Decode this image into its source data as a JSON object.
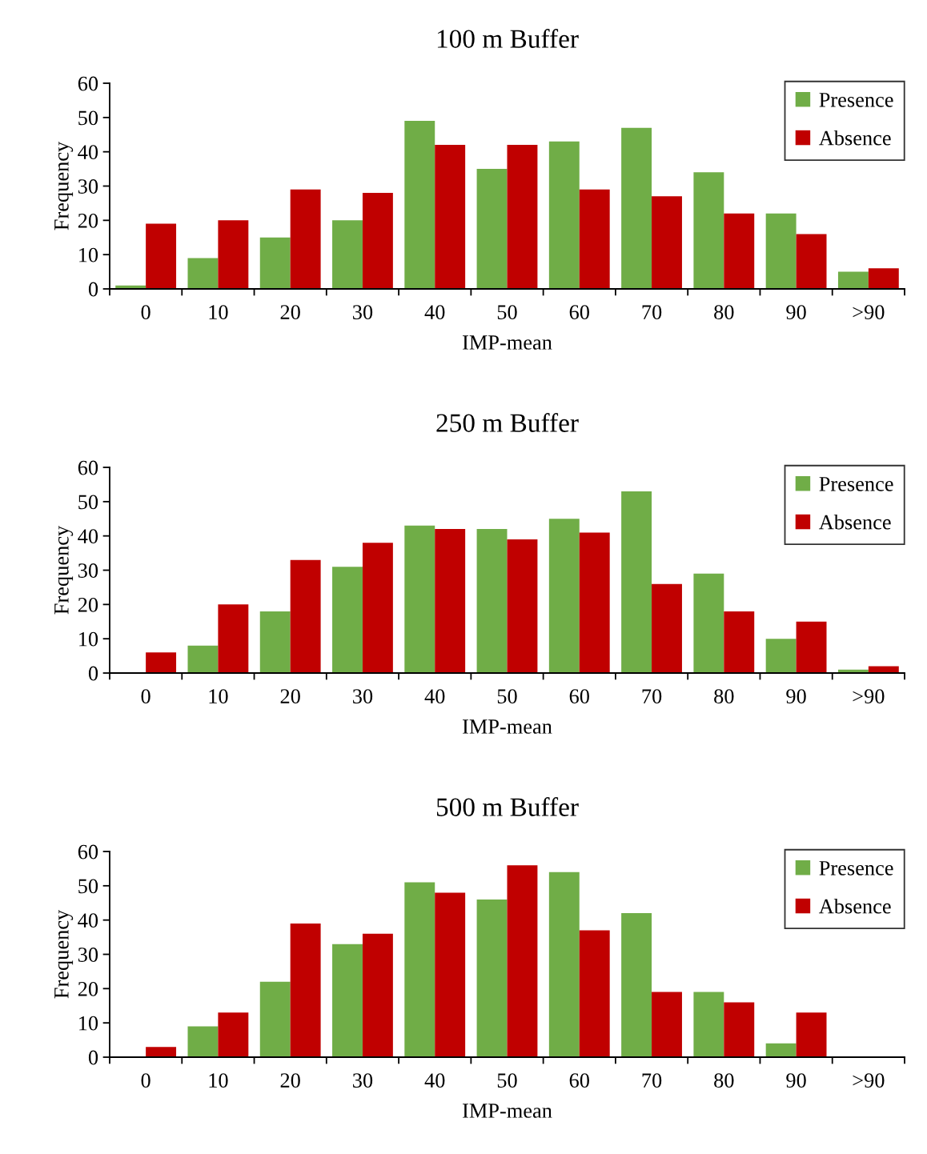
{
  "chart_data": [
    {
      "type": "bar",
      "title": "100 m Buffer",
      "xlabel": "IMP-mean",
      "ylabel": "Frequency",
      "categories": [
        "0",
        "10",
        "20",
        "30",
        "40",
        "50",
        "60",
        "70",
        "80",
        "90",
        ">90"
      ],
      "series": [
        {
          "name": "Presence",
          "color": "#70ad47",
          "values": [
            1,
            9,
            15,
            20,
            49,
            35,
            43,
            47,
            34,
            22,
            5
          ]
        },
        {
          "name": "Absence",
          "color": "#c00000",
          "values": [
            19,
            20,
            29,
            28,
            42,
            42,
            29,
            27,
            22,
            16,
            6
          ]
        }
      ],
      "ylim": [
        0,
        60
      ],
      "yticks": [
        0,
        10,
        20,
        30,
        40,
        50,
        60
      ],
      "grid": false,
      "legend": "top right"
    },
    {
      "type": "bar",
      "title": "250 m Buffer",
      "xlabel": "IMP-mean",
      "ylabel": "Frequency",
      "categories": [
        "0",
        "10",
        "20",
        "30",
        "40",
        "50",
        "60",
        "70",
        "80",
        "90",
        ">90"
      ],
      "series": [
        {
          "name": "Presence",
          "color": "#70ad47",
          "values": [
            0,
            8,
            18,
            31,
            43,
            42,
            45,
            53,
            29,
            10,
            1
          ]
        },
        {
          "name": "Absence",
          "color": "#c00000",
          "values": [
            6,
            20,
            33,
            38,
            42,
            39,
            41,
            26,
            18,
            15,
            2
          ]
        }
      ],
      "ylim": [
        0,
        60
      ],
      "yticks": [
        0,
        10,
        20,
        30,
        40,
        50,
        60
      ],
      "grid": false,
      "legend": "top right"
    },
    {
      "type": "bar",
      "title": "500 m Buffer",
      "xlabel": "IMP-mean",
      "ylabel": "Frequency",
      "categories": [
        "0",
        "10",
        "20",
        "30",
        "40",
        "50",
        "60",
        "70",
        "80",
        "90",
        ">90"
      ],
      "series": [
        {
          "name": "Presence",
          "color": "#70ad47",
          "values": [
            0,
            9,
            22,
            33,
            51,
            46,
            54,
            42,
            19,
            4,
            0
          ]
        },
        {
          "name": "Absence",
          "color": "#c00000",
          "values": [
            3,
            13,
            39,
            36,
            48,
            56,
            37,
            19,
            16,
            13,
            0
          ]
        }
      ],
      "ylim": [
        0,
        60
      ],
      "yticks": [
        0,
        10,
        20,
        30,
        40,
        50,
        60
      ],
      "grid": false,
      "legend": "top right"
    }
  ]
}
